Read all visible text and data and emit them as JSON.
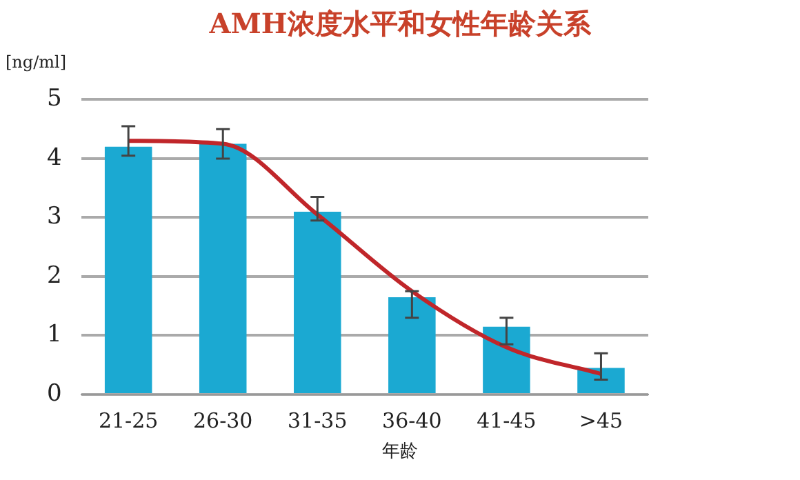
{
  "chart_data": {
    "type": "bar",
    "title": "AMH浓度水平和女性年龄关系",
    "xlabel": "年龄",
    "ylabel": "[ng/ml]",
    "categories": [
      "21-25",
      "26-30",
      "31-35",
      "36-40",
      "41-45",
      ">45"
    ],
    "series": [
      {
        "color": "#1ba9d2",
        "values": [
          4.2,
          4.25,
          3.1,
          1.65,
          1.15,
          0.45
        ],
        "errors": [
          [
            4.05,
            4.55
          ],
          [
            4.0,
            4.5
          ],
          [
            2.95,
            3.35
          ],
          [
            1.3,
            1.75
          ],
          [
            0.85,
            1.3
          ],
          [
            0.25,
            0.7
          ]
        ]
      },
      {
        "type": "line",
        "color": "#c0262a",
        "values": [
          4.3,
          4.25,
          3.05,
          1.75,
          0.8,
          0.35
        ]
      }
    ],
    "ylim": [
      0,
      5
    ],
    "yticks": [
      0,
      1,
      2,
      3,
      4,
      5
    ],
    "grid": "y",
    "legend": false,
    "marker": "none"
  }
}
